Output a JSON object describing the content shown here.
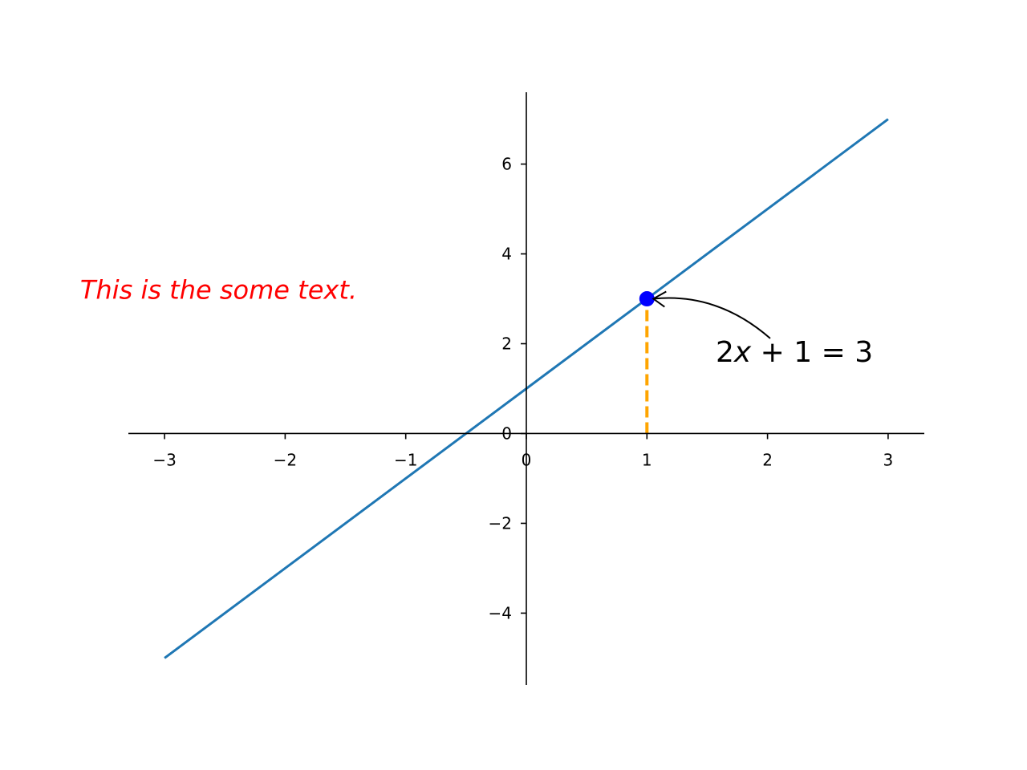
{
  "chart_data": {
    "type": "line",
    "title": "",
    "xlabel": "",
    "ylabel": "",
    "xlim": [
      -3.3,
      3.3
    ],
    "ylim": [
      -5.6,
      7.6
    ],
    "spines": "centered-at-origin",
    "grid": false,
    "xticks": [
      -3,
      -2,
      -1,
      0,
      1,
      2,
      3
    ],
    "xtick_labels": [
      "−3",
      "−2",
      "−1",
      "0",
      "1",
      "2",
      "3"
    ],
    "yticks": [
      -4,
      -2,
      0,
      2,
      4,
      6
    ],
    "ytick_labels": [
      "−4",
      "−2",
      "0",
      "2",
      "4",
      "6"
    ],
    "series": [
      {
        "x": [
          -3,
          -2,
          -1,
          0,
          1,
          2,
          3
        ],
        "y": [
          -5,
          -3,
          -1,
          1,
          3,
          5,
          7
        ],
        "color": "#1f77b4"
      }
    ],
    "highlight_point": {
      "x": 1,
      "y": 3,
      "color": "#0000ff"
    },
    "vertical_guide": {
      "x": 1,
      "y_from": 0,
      "y_to": 3,
      "color": "#ffa500",
      "style": "dashed"
    },
    "annotations": [
      {
        "name": "equation",
        "text_parts": [
          "2",
          "x",
          " + 1 = 3"
        ],
        "points_to": [
          1,
          3
        ],
        "text_anchor_data": [
          1.57,
          1.6
        ],
        "arrow": "curved",
        "color": "#000000"
      },
      {
        "name": "note",
        "text": "This is the some text.",
        "anchor_data": [
          -3.7,
          3.0
        ],
        "color": "#ff0000"
      }
    ]
  }
}
